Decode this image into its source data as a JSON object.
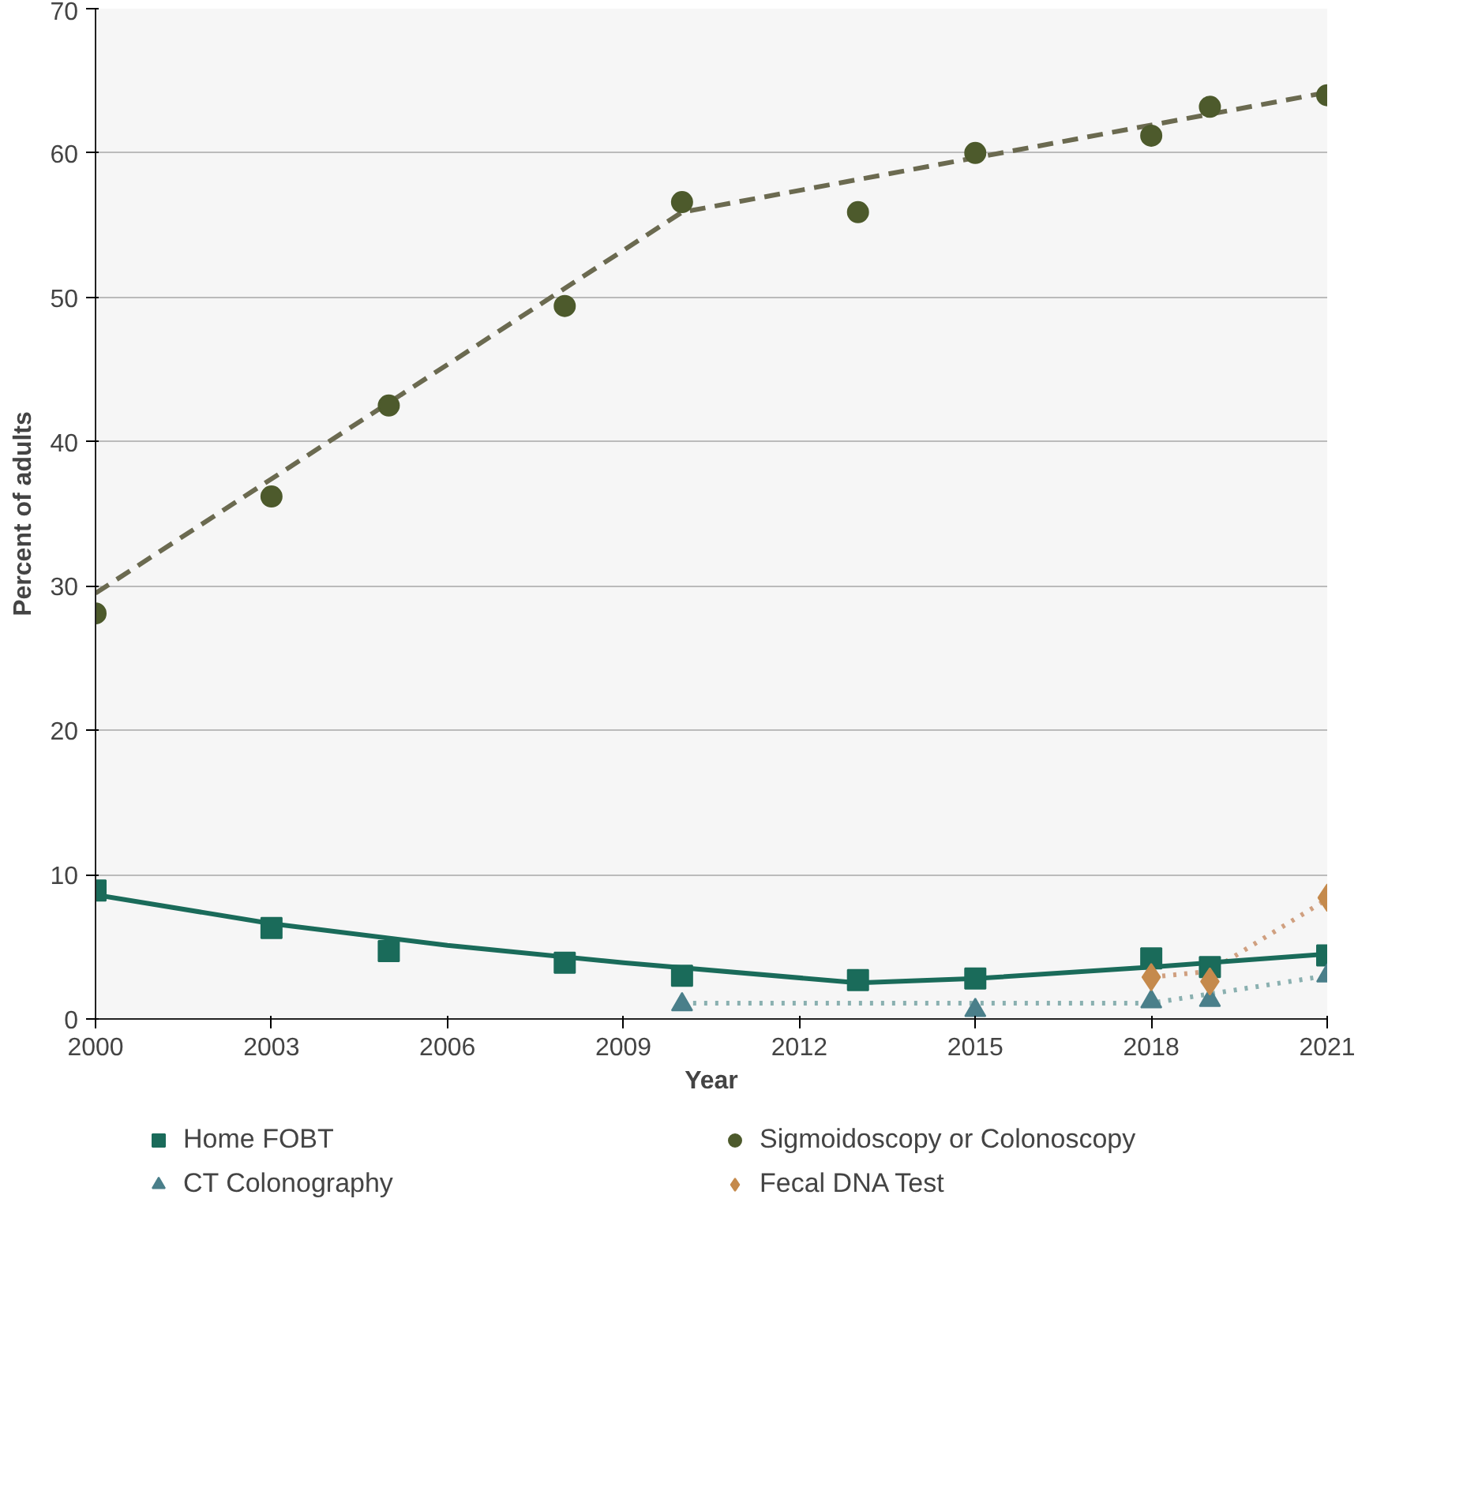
{
  "chart_data": {
    "type": "scatter",
    "xlabel": "Year",
    "ylabel": "Percent of adults",
    "xlim": [
      2000,
      2021
    ],
    "ylim": [
      0,
      70
    ],
    "xticks": [
      2000,
      2003,
      2006,
      2009,
      2012,
      2015,
      2018,
      2021
    ],
    "yticks": [
      0,
      10,
      20,
      30,
      40,
      50,
      60,
      70
    ],
    "grid": "y",
    "legend": "bottom",
    "series": [
      {
        "name": "Home FOBT",
        "marker": "square",
        "color": "#1a6b5a",
        "x": [
          2000,
          2003,
          2005,
          2008,
          2010,
          2013,
          2015,
          2018,
          2019,
          2021
        ],
        "values": [
          8.9,
          6.3,
          4.7,
          3.9,
          3.0,
          2.7,
          2.8,
          4.2,
          3.6,
          4.4
        ]
      },
      {
        "name": "Sigmoidoscopy or Colonoscopy",
        "marker": "circle",
        "color": "#4d5a2c",
        "x": [
          2000,
          2003,
          2005,
          2008,
          2010,
          2013,
          2015,
          2018,
          2019,
          2021
        ],
        "values": [
          28.1,
          36.2,
          42.5,
          49.4,
          56.6,
          55.9,
          60.0,
          61.2,
          63.2,
          64.0
        ]
      },
      {
        "name": "CT Colonography",
        "marker": "triangle",
        "color": "#4a7f8a",
        "x": [
          2010,
          2015,
          2018,
          2019,
          2021
        ],
        "values": [
          1.0,
          0.6,
          1.2,
          1.3,
          3.0
        ]
      },
      {
        "name": "Fecal DNA Test",
        "marker": "diamond",
        "color": "#c58a4c",
        "x": [
          2018,
          2019,
          2021
        ],
        "values": [
          2.9,
          2.6,
          8.4
        ]
      },
      {
        "type": "line",
        "line_style": "solid",
        "color": "#1a6b5a",
        "x": [
          2000,
          2003,
          2006,
          2009,
          2013,
          2015,
          2018,
          2021
        ],
        "values": [
          8.6,
          6.6,
          5.1,
          3.9,
          2.5,
          2.8,
          3.6,
          4.5
        ]
      },
      {
        "type": "line",
        "line_style": "dashed",
        "color": "#6b6a50",
        "x": [
          2000,
          2010,
          2021
        ],
        "values": [
          29.5,
          55.9,
          64.2
        ]
      },
      {
        "type": "line",
        "line_style": "dotted",
        "color": "#8ab0b0",
        "x": [
          2010,
          2018,
          2021
        ],
        "values": [
          1.1,
          1.1,
          3.0
        ]
      },
      {
        "type": "line",
        "line_style": "dotted",
        "color": "#d0a080",
        "x": [
          2018,
          2019,
          2021
        ],
        "values": [
          2.9,
          3.3,
          8.3
        ]
      }
    ]
  }
}
